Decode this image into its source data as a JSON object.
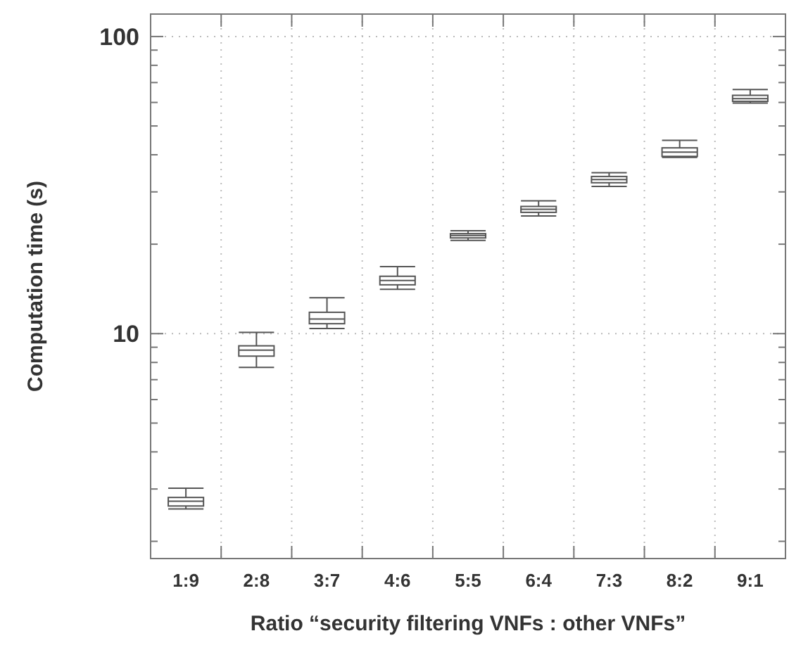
{
  "chart_data": {
    "type": "box",
    "xlabel": "Ratio “security filtering VNFs : other VNFs”",
    "ylabel": "Computation time (s)",
    "categories": [
      "1:9",
      "2:8",
      "3:7",
      "4:6",
      "5:5",
      "6:4",
      "7:3",
      "8:2",
      "9:1"
    ],
    "log": true,
    "ylim": [
      1.75,
      119
    ],
    "yticks": [
      {
        "value": 2,
        "label": null
      },
      {
        "value": 3,
        "label": null
      },
      {
        "value": 4,
        "label": null
      },
      {
        "value": 5,
        "label": null
      },
      {
        "value": 6,
        "label": null
      },
      {
        "value": 7,
        "label": null
      },
      {
        "value": 8,
        "label": null
      },
      {
        "value": 9,
        "label": null
      },
      10,
      {
        "value": 20,
        "label": null
      },
      {
        "value": 30,
        "label": null
      },
      {
        "value": 40,
        "label": null
      },
      {
        "value": 50,
        "label": null
      },
      {
        "value": 60,
        "label": null
      },
      {
        "value": 70,
        "label": null
      },
      {
        "value": 80,
        "label": null
      },
      {
        "value": 90,
        "label": null
      },
      100
    ],
    "grid": true,
    "color": "#555555",
    "boxes": [
      {
        "low": 2.57,
        "q1": 2.63,
        "median": 2.73,
        "q3": 2.81,
        "high": 3.02
      },
      {
        "low": 7.7,
        "q1": 8.4,
        "median": 8.8,
        "q3": 9.1,
        "high": 10.1
      },
      {
        "low": 10.4,
        "q1": 10.8,
        "median": 11.2,
        "q3": 11.8,
        "high": 13.2
      },
      {
        "low": 14.1,
        "q1": 14.6,
        "median": 15.1,
        "q3": 15.6,
        "high": 16.8
      },
      {
        "low": 20.6,
        "q1": 21.0,
        "median": 21.4,
        "q3": 21.7,
        "high": 22.2
      },
      {
        "low": 24.9,
        "q1": 25.6,
        "median": 26.2,
        "q3": 26.8,
        "high": 28.0
      },
      {
        "low": 31.3,
        "q1": 32.2,
        "median": 33.0,
        "q3": 33.8,
        "high": 34.8
      },
      {
        "low": 39.2,
        "q1": 39.5,
        "median": 40.8,
        "q3": 42.2,
        "high": 44.7
      },
      {
        "low": 59.7,
        "q1": 60.5,
        "median": 61.8,
        "q3": 63.4,
        "high": 66.3
      }
    ]
  }
}
